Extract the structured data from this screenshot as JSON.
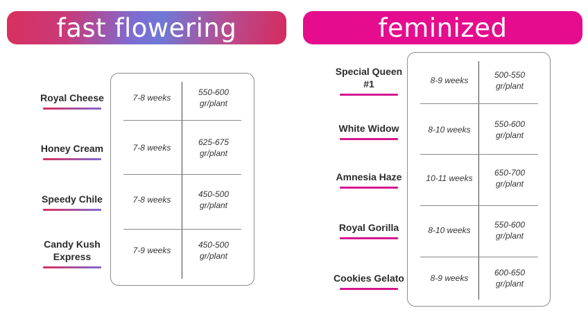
{
  "fast_flowering": {
    "title": "fast flowering",
    "rows": [
      {
        "name_lines": [
          "Royal Cheese"
        ],
        "weeks": "7-8 weeks",
        "yield_lines": [
          "550-600",
          "gr/plant"
        ]
      },
      {
        "name_lines": [
          "Honey Cream"
        ],
        "weeks": "7-8 weeks",
        "yield_lines": [
          "625-675",
          "gr/plant"
        ]
      },
      {
        "name_lines": [
          "Speedy Chile"
        ],
        "weeks": "7-8 weeks",
        "yield_lines": [
          "450-500",
          "gr/plant"
        ]
      },
      {
        "name_lines": [
          "Candy Kush",
          "Express"
        ],
        "weeks": "7-9 weeks",
        "yield_lines": [
          "450-500",
          "gr/plant"
        ]
      }
    ]
  },
  "feminized": {
    "title": "feminized",
    "rows": [
      {
        "name_lines": [
          "Special Queen",
          "#1"
        ],
        "weeks": "8-9 weeks",
        "yield_lines": [
          "500-550",
          "gr/plant"
        ]
      },
      {
        "name_lines": [
          "White Widow"
        ],
        "weeks": "8-10 weeks",
        "yield_lines": [
          "550-600",
          "gr/plant"
        ]
      },
      {
        "name_lines": [
          "Amnesia Haze"
        ],
        "weeks": "10-11 weeks",
        "yield_lines": [
          "650-700",
          "gr/plant"
        ]
      },
      {
        "name_lines": [
          "Royal Gorilla"
        ],
        "weeks": "8-10 weeks",
        "yield_lines": [
          "550-600",
          "gr/plant"
        ]
      },
      {
        "name_lines": [
          "Cookies Gelato"
        ],
        "weeks": "8-9 weeks",
        "yield_lines": [
          "600-650",
          "gr/plant"
        ]
      }
    ]
  },
  "colors": {
    "feminized_banner": "#e50d8e",
    "fast_flowering_gradient_start": "#d8305e",
    "fast_flowering_gradient_mid": "#7e6cd0"
  }
}
